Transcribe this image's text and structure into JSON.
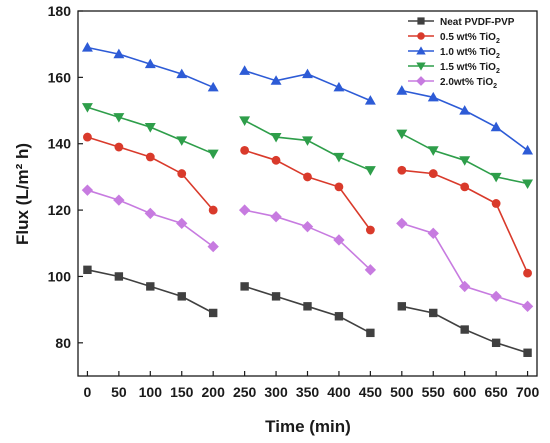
{
  "chart_data": {
    "type": "line",
    "title": "",
    "xlabel": "Time (min)",
    "ylabel": "Flux (L/m² h)",
    "xlim": [
      -15,
      715
    ],
    "ylim": [
      70,
      180
    ],
    "xticks": [
      0,
      50,
      100,
      150,
      200,
      250,
      300,
      350,
      400,
      450,
      500,
      550,
      600,
      650,
      700
    ],
    "yticks": [
      80,
      100,
      120,
      140,
      160,
      180
    ],
    "grid": false,
    "legend_position": "top-right",
    "segments": [
      [
        0,
        200
      ],
      [
        250,
        450
      ],
      [
        500,
        700
      ]
    ],
    "series": [
      {
        "name": "Neat PVDF-PVP",
        "color": "#404040",
        "marker": "square",
        "x": [
          0,
          50,
          100,
          150,
          200,
          250,
          300,
          350,
          400,
          450,
          500,
          550,
          600,
          650,
          700
        ],
        "values": [
          102,
          100,
          97,
          94,
          89,
          97,
          94,
          91,
          88,
          83,
          91,
          89,
          84,
          80,
          77
        ]
      },
      {
        "name": "0.5 wt% TiO2",
        "color": "#d93a2b",
        "marker": "circle",
        "x": [
          0,
          50,
          100,
          150,
          200,
          250,
          300,
          350,
          400,
          450,
          500,
          550,
          600,
          650,
          700
        ],
        "values": [
          142,
          139,
          136,
          131,
          120,
          138,
          135,
          130,
          127,
          114,
          132,
          131,
          127,
          122,
          101
        ]
      },
      {
        "name": "1.0 wt% TiO2",
        "color": "#2d5bd6",
        "marker": "triangle-up",
        "x": [
          0,
          50,
          100,
          150,
          200,
          250,
          300,
          350,
          400,
          450,
          500,
          550,
          600,
          650,
          700
        ],
        "values": [
          169,
          167,
          164,
          161,
          157,
          162,
          159,
          161,
          157,
          153,
          156,
          154,
          150,
          145,
          138
        ]
      },
      {
        "name": "1.5 wt% TiO2",
        "color": "#2e9e4a",
        "marker": "triangle-down",
        "x": [
          0,
          50,
          100,
          150,
          200,
          250,
          300,
          350,
          400,
          450,
          500,
          550,
          600,
          650,
          700
        ],
        "values": [
          151,
          148,
          145,
          141,
          137,
          147,
          142,
          141,
          136,
          132,
          143,
          138,
          135,
          130,
          128
        ]
      },
      {
        "name": "2.0wt% TiO2",
        "color": "#c77be0",
        "marker": "diamond",
        "x": [
          0,
          50,
          100,
          150,
          200,
          250,
          300,
          350,
          400,
          450,
          500,
          550,
          600,
          650,
          700
        ],
        "values": [
          126,
          123,
          119,
          116,
          109,
          120,
          118,
          115,
          111,
          102,
          116,
          113,
          97,
          94,
          91
        ]
      }
    ]
  }
}
